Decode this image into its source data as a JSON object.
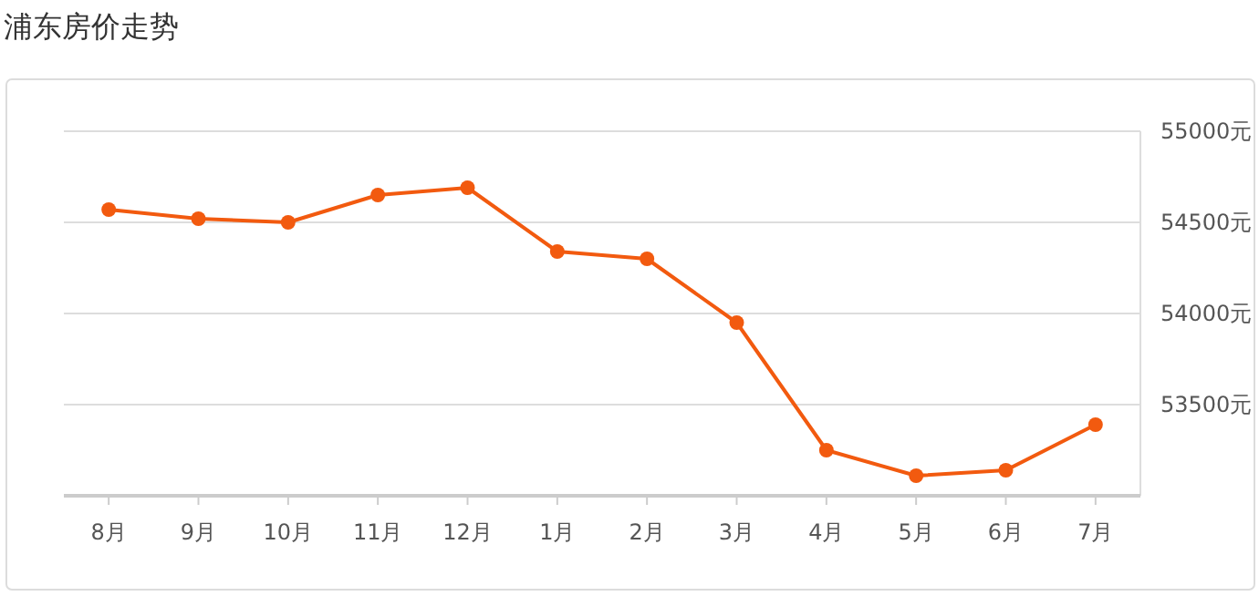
{
  "chart_data": {
    "type": "line",
    "title": "浦东房价走势",
    "categories": [
      "8月",
      "9月",
      "10月",
      "11月",
      "12月",
      "1月",
      "2月",
      "3月",
      "4月",
      "5月",
      "6月",
      "7月"
    ],
    "series": [
      {
        "color": "#f25a0f",
        "values": [
          54570,
          54520,
          54500,
          54650,
          54690,
          54340,
          54300,
          53950,
          53250,
          53110,
          53140,
          53390
        ]
      }
    ],
    "ylim": [
      53000,
      55000
    ],
    "yticks": [
      {
        "value": 53500,
        "label": "53500元"
      },
      {
        "value": 54000,
        "label": "54000元"
      },
      {
        "value": 54500,
        "label": "54500元"
      },
      {
        "value": 55000,
        "label": "55000元"
      }
    ],
    "grid": "y",
    "marker": "circle",
    "line_style": "solid"
  }
}
